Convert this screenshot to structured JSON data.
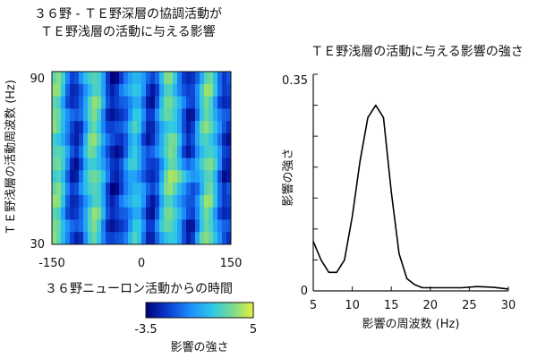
{
  "chart_data": [
    {
      "type": "heatmap",
      "title": [
        "３６野 - ＴＥ野深層の協調活動が",
        "ＴＥ野浅層の活動に与える影響"
      ],
      "xlabel": "３６野ニューロン活動からの時間",
      "ylabel": "ＴＥ野浅層の活動周波数 (Hz)",
      "x_range": [
        -150,
        150
      ],
      "y_range": [
        30,
        90
      ],
      "x_ticks": [
        "-150",
        "0",
        "150"
      ],
      "y_ticks": [
        "90",
        "30"
      ],
      "colorbar": {
        "label": "影響の強さ",
        "min_label": "-3.5",
        "max_label": "5",
        "min": -3.5,
        "max": 5
      },
      "colormap": [
        "#00007a",
        "#0a3ccf",
        "#1e90ff",
        "#2ec8e6",
        "#7fdc8a",
        "#d8ee3a"
      ],
      "grid": {
        "cols": 40,
        "rows": 14
      }
    },
    {
      "type": "line",
      "title": "ＴＥ野浅層の活動に与える影響の強さ",
      "xlabel": "影響の周波数 (Hz)",
      "ylabel": "影響の強さ",
      "xlim": [
        5,
        30
      ],
      "ylim": [
        0,
        0.35
      ],
      "x_ticks": [
        "5",
        "10",
        "15",
        "20",
        "25",
        "30"
      ],
      "y_ticks": [
        "0",
        "0.35"
      ],
      "series": [
        {
          "color": "#000000",
          "x": [
            5,
            6,
            7,
            8,
            9,
            10,
            11,
            12,
            13,
            14,
            15,
            16,
            17,
            18,
            19,
            20,
            22,
            24,
            26,
            28,
            30
          ],
          "y": [
            0.08,
            0.05,
            0.03,
            0.03,
            0.05,
            0.12,
            0.21,
            0.28,
            0.3,
            0.28,
            0.16,
            0.06,
            0.02,
            0.01,
            0.005,
            0.005,
            0.005,
            0.005,
            0.007,
            0.006,
            0.003
          ]
        }
      ]
    }
  ]
}
